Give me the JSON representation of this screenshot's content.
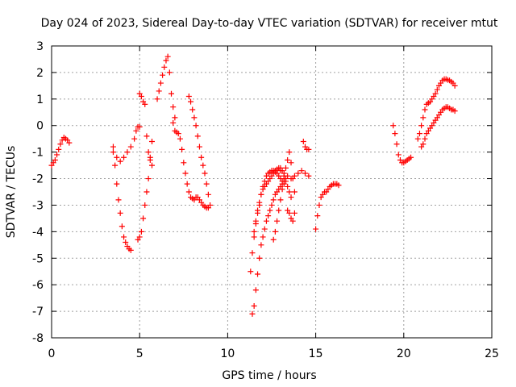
{
  "chart_data": {
    "type": "scatter",
    "title": "Day 024 of 2023, Sidereal Day-to-day VTEC variation (SDTVAR) for receiver mtut",
    "xlabel": "GPS time / hours",
    "ylabel": "SDTVAR / TECUs",
    "xlim": [
      0,
      25
    ],
    "ylim": [
      -8,
      3
    ],
    "xticks": [
      0,
      5,
      10,
      15,
      20,
      25
    ],
    "yticks": [
      -8,
      -7,
      -6,
      -5,
      -4,
      -3,
      -2,
      -1,
      0,
      1,
      2,
      3
    ],
    "grid": true,
    "marker": "+",
    "color": "#ff0000",
    "series": [
      {
        "name": "s1",
        "x": [
          0.0,
          0.1,
          0.2,
          0.3,
          0.4,
          0.5,
          0.6,
          0.7,
          0.8,
          0.9,
          1.0
        ],
        "y": [
          -1.5,
          -1.4,
          -1.3,
          -1.1,
          -0.9,
          -0.7,
          -0.55,
          -0.45,
          -0.5,
          -0.55,
          -0.65
        ]
      },
      {
        "name": "s2",
        "x": [
          3.5,
          3.6,
          3.7,
          3.8,
          3.9,
          4.0,
          4.1,
          4.2,
          4.3,
          4.4,
          4.5
        ],
        "y": [
          -0.8,
          -1.5,
          -2.2,
          -2.8,
          -3.3,
          -3.8,
          -4.2,
          -4.4,
          -4.55,
          -4.65,
          -4.7
        ]
      },
      {
        "name": "s3",
        "x": [
          3.5,
          3.7,
          3.9,
          4.1,
          4.3,
          4.5,
          4.7,
          4.8,
          4.9,
          5.0
        ],
        "y": [
          -1.0,
          -1.2,
          -1.35,
          -1.2,
          -1.0,
          -0.8,
          -0.5,
          -0.2,
          -0.05,
          -0.05
        ]
      },
      {
        "name": "s4",
        "x": [
          5.0,
          5.1,
          5.2,
          5.3,
          5.4,
          5.5,
          5.6,
          5.7
        ],
        "y": [
          1.2,
          1.1,
          0.9,
          0.8,
          -0.4,
          -1.0,
          -1.3,
          -1.5
        ]
      },
      {
        "name": "s5",
        "x": [
          4.9,
          5.0,
          5.1,
          5.2,
          5.3,
          5.4,
          5.5,
          5.6,
          5.7
        ],
        "y": [
          -4.3,
          -4.2,
          -4.0,
          -3.5,
          -3.0,
          -2.5,
          -2.0,
          -1.2,
          -0.6
        ]
      },
      {
        "name": "s6",
        "x": [
          6.0,
          6.1,
          6.2,
          6.3,
          6.4,
          6.5,
          6.6,
          6.7,
          6.8,
          6.9,
          7.0
        ],
        "y": [
          1.0,
          1.3,
          1.6,
          1.9,
          2.2,
          2.45,
          2.6,
          2.0,
          1.2,
          0.7,
          0.3
        ]
      },
      {
        "name": "s7",
        "x": [
          6.9,
          7.0,
          7.1,
          7.2,
          7.3,
          7.4,
          7.5,
          7.6,
          7.7,
          7.8,
          7.9,
          8.0,
          8.1,
          8.2,
          8.3,
          8.4,
          8.5,
          8.6,
          8.7,
          8.8,
          8.9
        ],
        "y": [
          0.1,
          -0.2,
          -0.25,
          -0.3,
          -0.5,
          -0.9,
          -1.4,
          -1.8,
          -2.2,
          -2.5,
          -2.7,
          -2.75,
          -2.8,
          -2.7,
          -2.7,
          -2.8,
          -2.9,
          -3.0,
          -3.05,
          -3.1,
          -3.1
        ]
      },
      {
        "name": "s8",
        "x": [
          7.8,
          7.9,
          8.0,
          8.1,
          8.2,
          8.3,
          8.4,
          8.5,
          8.6,
          8.7,
          8.8,
          8.9,
          9.0
        ],
        "y": [
          1.1,
          0.9,
          0.6,
          0.3,
          0.0,
          -0.4,
          -0.8,
          -1.2,
          -1.5,
          -1.8,
          -2.2,
          -2.6,
          -3.0
        ]
      },
      {
        "name": "s9",
        "x": [
          11.3,
          11.4,
          11.5,
          11.6,
          11.7,
          11.8,
          11.9,
          12.0,
          12.1,
          12.2,
          12.3,
          12.4,
          12.5,
          12.6,
          12.7,
          12.8,
          12.9,
          13.0,
          13.1,
          13.2,
          13.3,
          13.4,
          13.5,
          13.6
        ],
        "y": [
          -5.5,
          -4.8,
          -4.2,
          -3.7,
          -3.3,
          -3.0,
          -2.6,
          -2.4,
          -2.3,
          -2.2,
          -2.1,
          -2.0,
          -1.9,
          -1.8,
          -1.7,
          -1.65,
          -1.6,
          -1.6,
          -1.7,
          -1.9,
          -2.1,
          -2.3,
          -2.5,
          -2.7
        ]
      },
      {
        "name": "s10",
        "x": [
          11.4,
          11.5,
          11.6,
          11.7,
          11.8,
          11.9,
          12.0,
          12.1,
          12.2,
          12.3,
          12.4,
          12.5,
          12.6,
          12.7,
          12.8,
          12.9,
          13.0,
          13.1,
          13.2,
          13.3
        ],
        "y": [
          -7.1,
          -6.8,
          -6.2,
          -5.6,
          -5.0,
          -4.5,
          -4.2,
          -3.9,
          -3.6,
          -3.4,
          -3.2,
          -3.0,
          -2.8,
          -2.6,
          -2.5,
          -2.4,
          -2.3,
          -2.2,
          -2.1,
          -2.0
        ]
      },
      {
        "name": "s11",
        "x": [
          11.5,
          11.6,
          11.7,
          11.8,
          11.9,
          12.0,
          12.1,
          12.2,
          12.3,
          12.4,
          12.5,
          12.6,
          12.7,
          12.8,
          12.9,
          13.0,
          13.1,
          13.2
        ],
        "y": [
          -4.0,
          -3.6,
          -3.2,
          -2.9,
          -2.6,
          -2.3,
          -2.1,
          -1.9,
          -1.8,
          -1.75,
          -1.7,
          -1.7,
          -1.75,
          -1.8,
          -1.9,
          -2.0,
          -2.1,
          -2.2
        ]
      },
      {
        "name": "s12",
        "x": [
          12.6,
          12.7,
          12.8,
          12.9,
          13.0,
          13.1,
          13.2,
          13.3,
          13.4,
          13.5,
          13.6,
          13.7,
          13.8
        ],
        "y": [
          -4.3,
          -4.0,
          -3.6,
          -3.2,
          -2.8,
          -2.4,
          -2.0,
          -1.6,
          -1.3,
          -1.0,
          -1.4,
          -2.0,
          -2.5
        ]
      },
      {
        "name": "s13",
        "x": [
          13.0,
          13.2,
          13.4,
          13.6,
          13.8,
          14.0,
          14.2,
          14.4,
          14.6
        ],
        "y": [
          -1.7,
          -1.8,
          -1.9,
          -2.0,
          -1.9,
          -1.8,
          -1.7,
          -1.8,
          -1.9
        ]
      },
      {
        "name": "s14",
        "x": [
          13.4,
          13.5,
          13.6,
          13.7,
          13.8
        ],
        "y": [
          -3.2,
          -3.3,
          -3.5,
          -3.6,
          -3.3
        ]
      },
      {
        "name": "s15",
        "x": [
          14.3,
          14.4,
          14.5,
          14.6
        ],
        "y": [
          -0.6,
          -0.8,
          -0.9,
          -0.9
        ]
      },
      {
        "name": "s16",
        "x": [
          15.0,
          15.1,
          15.2,
          15.3,
          15.4,
          15.5,
          15.6,
          15.7,
          15.8,
          15.9,
          16.0,
          16.1,
          16.2,
          16.3
        ],
        "y": [
          -3.9,
          -3.4,
          -3.0,
          -2.7,
          -2.6,
          -2.5,
          -2.5,
          -2.4,
          -2.3,
          -2.25,
          -2.2,
          -2.2,
          -2.2,
          -2.25
        ]
      },
      {
        "name": "s17",
        "x": [
          19.4,
          19.5,
          19.6,
          19.7,
          19.8,
          19.9,
          20.0,
          20.1,
          20.2,
          20.3,
          20.4
        ],
        "y": [
          0.0,
          -0.3,
          -0.7,
          -1.1,
          -1.3,
          -1.4,
          -1.4,
          -1.35,
          -1.3,
          -1.25,
          -1.2
        ]
      },
      {
        "name": "s18",
        "x": [
          20.8,
          20.9,
          21.0,
          21.1,
          21.2,
          21.3,
          21.4,
          21.5,
          21.6,
          21.7,
          21.8,
          21.9,
          22.0,
          22.1,
          22.2,
          22.3,
          22.4,
          22.5,
          22.6,
          22.7,
          22.8,
          22.9
        ],
        "y": [
          -0.5,
          -0.3,
          0.0,
          0.3,
          0.6,
          0.8,
          0.85,
          0.9,
          1.0,
          1.1,
          1.2,
          1.35,
          1.5,
          1.6,
          1.7,
          1.75,
          1.75,
          1.72,
          1.7,
          1.65,
          1.6,
          1.5
        ]
      },
      {
        "name": "s19",
        "x": [
          21.0,
          21.1,
          21.2,
          21.3,
          21.4,
          21.5,
          21.6,
          21.7,
          21.8,
          21.9,
          22.0,
          22.1,
          22.2,
          22.3,
          22.4,
          22.5,
          22.6,
          22.7,
          22.8,
          22.9
        ],
        "y": [
          -0.8,
          -0.7,
          -0.5,
          -0.3,
          -0.2,
          -0.1,
          0.0,
          0.1,
          0.2,
          0.3,
          0.4,
          0.5,
          0.6,
          0.65,
          0.7,
          0.7,
          0.65,
          0.6,
          0.6,
          0.55
        ]
      }
    ]
  }
}
